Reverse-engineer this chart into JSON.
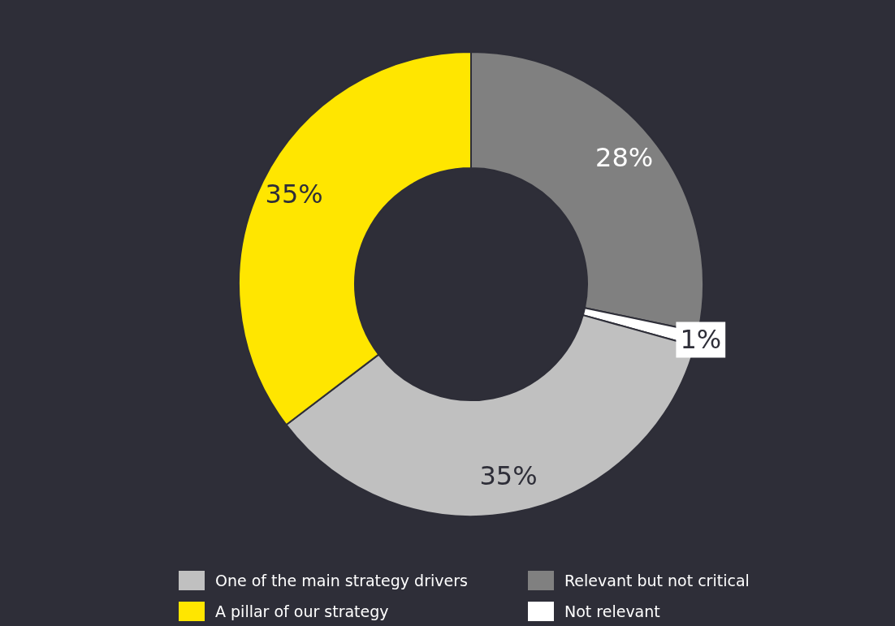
{
  "chart_data": {
    "type": "donut",
    "categories": [
      "Relevant but not critical",
      "Not relevant",
      "One of the main strategy drivers",
      "A pillar of our strategy"
    ],
    "values": [
      28,
      1,
      35,
      35
    ],
    "colors": [
      "#808080",
      "#ffffff",
      "#c0c0c0",
      "#ffe600"
    ],
    "value_labels": [
      "28%",
      "1%",
      "35%",
      "35%"
    ],
    "legend": "bottom"
  }
}
